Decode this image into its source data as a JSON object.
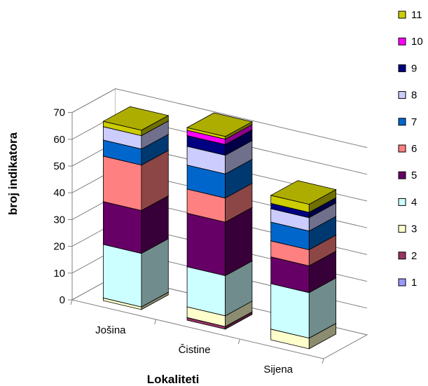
{
  "chart_data": {
    "type": "bar",
    "stacked": true,
    "three_d": true,
    "xlabel": "Lokaliteti",
    "ylabel": "broj indikatora",
    "ylim": [
      0,
      70
    ],
    "yticks": [
      0,
      10,
      20,
      30,
      40,
      50,
      60,
      70
    ],
    "grid": true,
    "legend_position": "right",
    "categories": [
      "Jošina",
      "Čistine",
      "Sijena"
    ],
    "series": [
      {
        "name": "1",
        "color": "#9999ff",
        "values": [
          0,
          0,
          0
        ]
      },
      {
        "name": "2",
        "color": "#993366",
        "values": [
          0,
          1,
          0
        ]
      },
      {
        "name": "3",
        "color": "#ffffcc",
        "values": [
          1,
          4,
          4
        ]
      },
      {
        "name": "4",
        "color": "#ccffff",
        "values": [
          20,
          15,
          17
        ]
      },
      {
        "name": "5",
        "color": "#660066",
        "values": [
          16,
          20,
          10
        ]
      },
      {
        "name": "6",
        "color": "#ff8080",
        "values": [
          17,
          9,
          6
        ]
      },
      {
        "name": "7",
        "color": "#0066cc",
        "values": [
          6,
          9,
          7
        ]
      },
      {
        "name": "8",
        "color": "#ccccff",
        "values": [
          5,
          7,
          5
        ]
      },
      {
        "name": "9",
        "color": "#000080",
        "values": [
          0,
          4,
          2
        ]
      },
      {
        "name": "10",
        "color": "#ff00ff",
        "values": [
          0,
          2,
          0
        ]
      },
      {
        "name": "11",
        "color": "#cccc00",
        "values": [
          2,
          1,
          3
        ]
      }
    ]
  }
}
